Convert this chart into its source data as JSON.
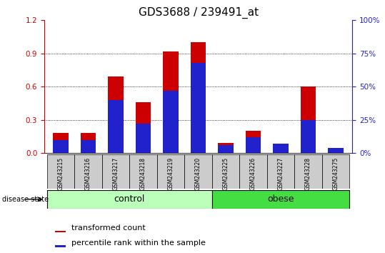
{
  "title": "GDS3688 / 239491_at",
  "samples": [
    "GSM243215",
    "GSM243216",
    "GSM243217",
    "GSM243218",
    "GSM243219",
    "GSM243220",
    "GSM243225",
    "GSM243226",
    "GSM243227",
    "GSM243228",
    "GSM243275"
  ],
  "transformed_count": [
    0.18,
    0.18,
    0.69,
    0.46,
    0.92,
    1.0,
    0.09,
    0.2,
    0.07,
    0.6,
    0.04
  ],
  "percentile_rank_pct": [
    10,
    10,
    40,
    22,
    47,
    68,
    6,
    12,
    7,
    25,
    4
  ],
  "groups": [
    {
      "label": "control",
      "start": 0,
      "end": 6,
      "color": "#bbffbb"
    },
    {
      "label": "obese",
      "start": 6,
      "end": 11,
      "color": "#44dd44"
    }
  ],
  "ylim_left": [
    0,
    1.2
  ],
  "ylim_right": [
    0,
    100
  ],
  "yticks_left": [
    0,
    0.3,
    0.6,
    0.9,
    1.2
  ],
  "yticks_right": [
    0,
    25,
    50,
    75,
    100
  ],
  "bar_color_red": "#cc0000",
  "bar_color_blue": "#2222cc",
  "bar_width": 0.55,
  "label_area_color": "#cccccc",
  "disease_state_label": "disease state",
  "legend_red": "transformed count",
  "legend_blue": "percentile rank within the sample",
  "title_fontsize": 11,
  "tick_fontsize": 7.5,
  "group_label_fontsize": 9,
  "legend_fontsize": 8
}
